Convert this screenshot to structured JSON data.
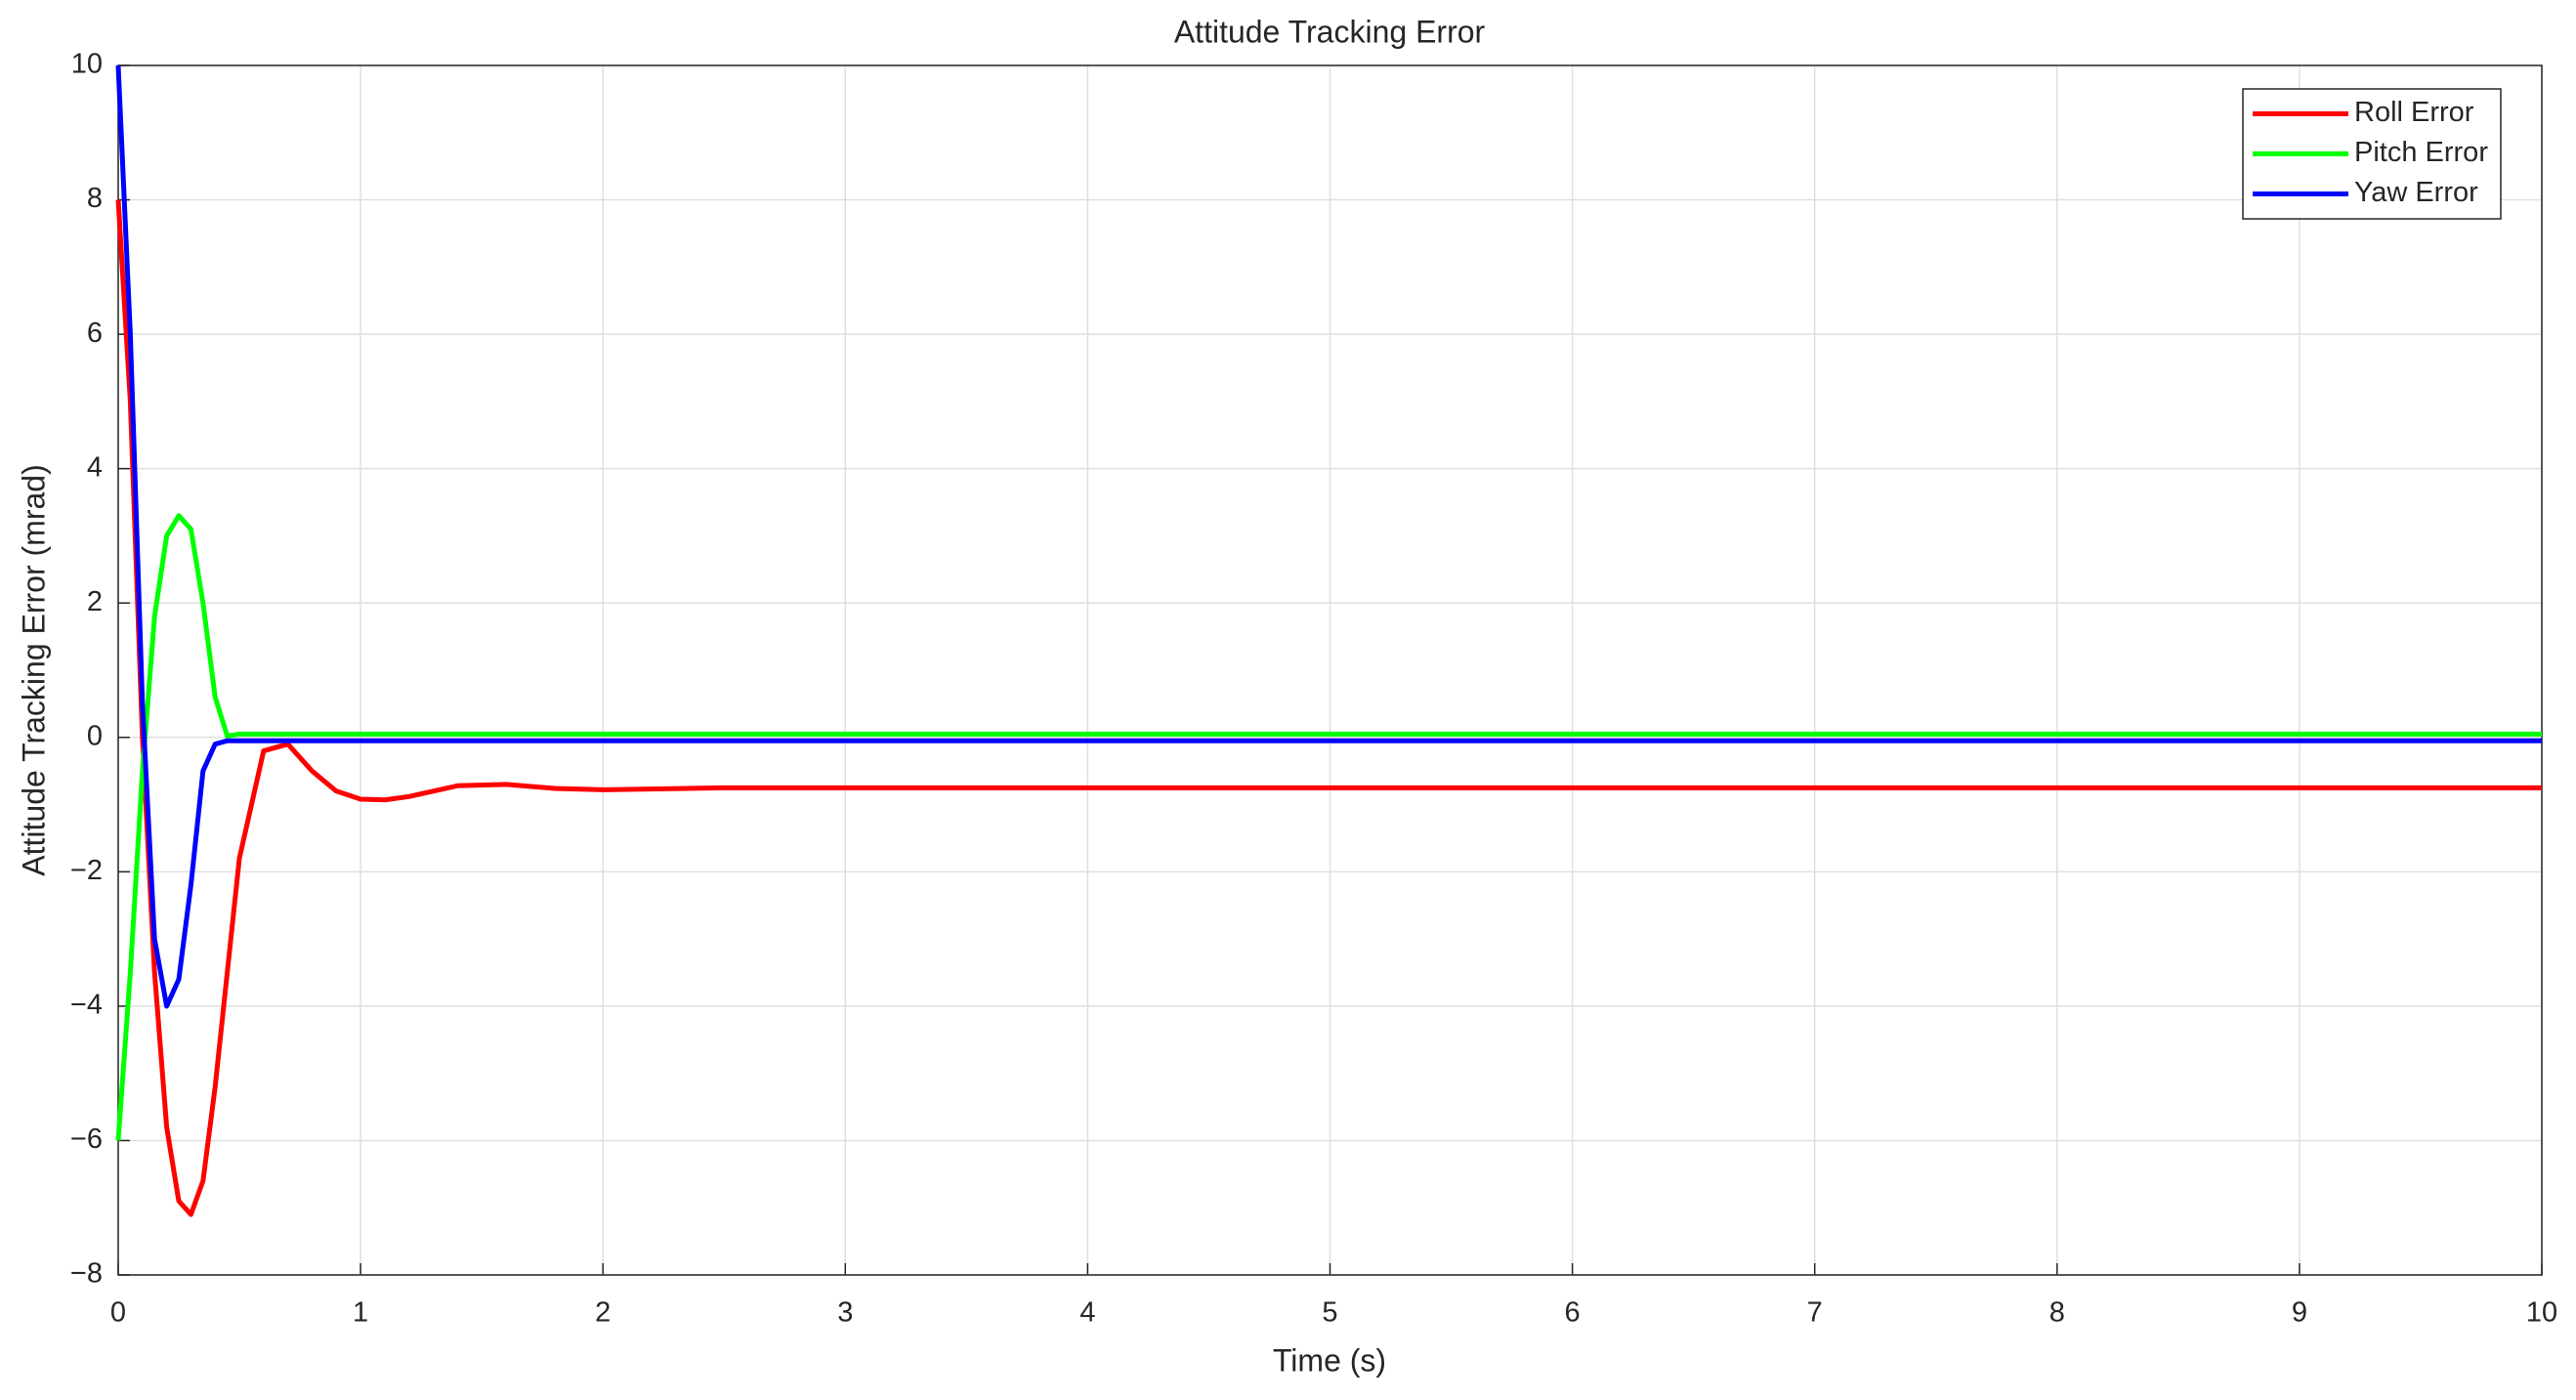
{
  "chart_data": {
    "type": "line",
    "title": "Attitude Tracking Error",
    "xlabel": "Time (s)",
    "ylabel": "Attitude Tracking Error (mrad)",
    "x": [
      0,
      0.05,
      0.1,
      0.15,
      0.2,
      0.25,
      0.3,
      0.35,
      0.4,
      0.45,
      0.5,
      0.6,
      0.7,
      0.8,
      0.9,
      1.0,
      1.1,
      1.2,
      1.4,
      1.6,
      1.8,
      2.0,
      2.5,
      3,
      4,
      5,
      6,
      7,
      8,
      9,
      10
    ],
    "series": [
      {
        "name": "Roll Error",
        "color": "#ff0000",
        "values": [
          8,
          5,
          0,
          -3.5,
          -5.8,
          -6.9,
          -7.1,
          -6.6,
          -5.2,
          -3.5,
          -1.8,
          -0.2,
          -0.1,
          -0.5,
          -0.8,
          -0.92,
          -0.93,
          -0.88,
          -0.72,
          -0.7,
          -0.76,
          -0.78,
          -0.75,
          -0.75,
          -0.75,
          -0.75,
          -0.75,
          -0.75,
          -0.75,
          -0.75,
          -0.75
        ]
      },
      {
        "name": "Pitch Error",
        "color": "#00ff00",
        "values": [
          -6,
          -3.5,
          -0.5,
          1.8,
          3.0,
          3.3,
          3.1,
          2.0,
          0.6,
          0.02,
          0.05,
          0.05,
          0.05,
          0.05,
          0.05,
          0.05,
          0.05,
          0.05,
          0.05,
          0.05,
          0.05,
          0.05,
          0.05,
          0.05,
          0.05,
          0.05,
          0.05,
          0.05,
          0.05,
          0.05,
          0.05
        ]
      },
      {
        "name": "Yaw Error",
        "color": "#0000ff",
        "values": [
          10,
          6,
          0.5,
          -3,
          -4.0,
          -3.6,
          -2.2,
          -0.5,
          -0.1,
          -0.05,
          -0.05,
          -0.05,
          -0.05,
          -0.05,
          -0.05,
          -0.05,
          -0.05,
          -0.05,
          -0.05,
          -0.05,
          -0.05,
          -0.05,
          -0.05,
          -0.05,
          -0.05,
          -0.05,
          -0.05,
          -0.05,
          -0.05,
          -0.05,
          -0.05
        ]
      }
    ],
    "xlim": [
      0,
      10
    ],
    "xticks": [
      0,
      1,
      2,
      3,
      4,
      5,
      6,
      7,
      8,
      9,
      10
    ],
    "ylim": [
      -8,
      10
    ],
    "yticks": [
      {
        "value": -8,
        "label": "−8"
      },
      {
        "value": -6,
        "label": "−6"
      },
      {
        "value": -4,
        "label": "−4"
      },
      {
        "value": -2,
        "label": "−2"
      },
      0,
      2,
      4,
      6,
      8,
      10
    ],
    "grid": true,
    "legend": "upper right"
  }
}
